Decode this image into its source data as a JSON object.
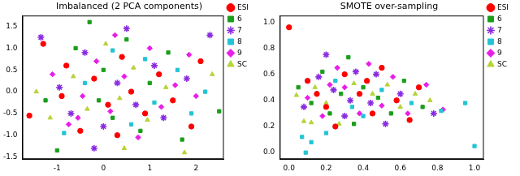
{
  "chart_data": [
    {
      "type": "scatter",
      "title": "Imbalanced (2 PCA components)",
      "xlim": [
        -1.75,
        2.6
      ],
      "xticks": [
        -1,
        0,
        1,
        2
      ],
      "ylim": [
        -1.55,
        1.75
      ],
      "yticks": [
        -1.5,
        {
          "value": -1,
          "label": "-1.0"
        },
        -0.5,
        {
          "value": 0,
          "label": "0.0"
        },
        0.5,
        {
          "value": 1,
          "label": "1.0"
        },
        1.5
      ],
      "grid": false,
      "legend": "upper right",
      "series": [
        {
          "name": "ESI",
          "color": "#ff0000",
          "marker": "circle",
          "values": [
            [
              -1.6,
              -0.55
            ],
            [
              -1.3,
              1.1
            ],
            [
              -0.8,
              0.6
            ],
            [
              -0.5,
              -0.9
            ],
            [
              -0.2,
              0.3
            ],
            [
              0.1,
              -0.3
            ],
            [
              0.4,
              0.8
            ],
            [
              0.6,
              0.0
            ],
            [
              0.9,
              -0.5
            ],
            [
              1.2,
              0.4
            ],
            [
              1.5,
              -0.2
            ],
            [
              2.1,
              0.7
            ],
            [
              1.9,
              -0.8
            ],
            [
              -0.9,
              -0.1
            ],
            [
              0.3,
              -1.0
            ]
          ]
        },
        {
          "name": "6",
          "color": "#1a9e1a",
          "marker": "square",
          "values": [
            [
              -1.25,
              -0.2
            ],
            [
              -1.0,
              -1.35
            ],
            [
              -0.6,
              1.0
            ],
            [
              -0.3,
              1.6
            ],
            [
              0.0,
              0.5
            ],
            [
              0.2,
              -0.6
            ],
            [
              0.5,
              1.2
            ],
            [
              0.8,
              -0.9
            ],
            [
              1.0,
              0.2
            ],
            [
              1.4,
              0.9
            ],
            [
              1.7,
              -1.1
            ],
            [
              2.5,
              -0.45
            ],
            [
              -0.1,
              -0.2
            ]
          ]
        },
        {
          "name": "7",
          "color": "#8a2be2",
          "marker": "star",
          "values": [
            [
              -1.35,
              1.25
            ],
            [
              -0.95,
              0.1
            ],
            [
              -0.7,
              -0.5
            ],
            [
              -0.4,
              0.9
            ],
            [
              0.0,
              -0.8
            ],
            [
              0.3,
              0.2
            ],
            [
              0.5,
              1.45
            ],
            [
              0.7,
              -0.3
            ],
            [
              1.1,
              0.6
            ],
            [
              1.3,
              -0.6
            ],
            [
              1.8,
              0.3
            ],
            [
              2.3,
              1.3
            ],
            [
              -0.2,
              -1.3
            ]
          ]
        },
        {
          "name": "8",
          "color": "#22c4d4",
          "marker": "square",
          "values": [
            [
              -0.85,
              -0.95
            ],
            [
              -0.4,
              0.2
            ],
            [
              0.2,
              0.95
            ],
            [
              0.6,
              -0.75
            ],
            [
              1.1,
              -0.25
            ],
            [
              1.6,
              0.5
            ],
            [
              2.2,
              0.0
            ],
            [
              1.9,
              -0.5
            ],
            [
              0.9,
              0.75
            ]
          ]
        },
        {
          "name": "9",
          "color": "#e81ee8",
          "marker": "diamond",
          "values": [
            [
              -1.1,
              0.4
            ],
            [
              -0.75,
              -0.75
            ],
            [
              -0.45,
              -0.1
            ],
            [
              -0.15,
              0.7
            ],
            [
              0.15,
              -0.45
            ],
            [
              0.45,
              0.35
            ],
            [
              0.75,
              -1.05
            ],
            [
              1.0,
              1.0
            ],
            [
              1.25,
              -0.35
            ],
            [
              1.55,
              0.15
            ],
            [
              1.85,
              0.85
            ],
            [
              2.0,
              -0.1
            ],
            [
              0.25,
              1.3
            ],
            [
              -0.55,
              -0.6
            ]
          ]
        },
        {
          "name": "SC",
          "color": "#b5d43a",
          "marker": "triangle",
          "values": [
            [
              -1.45,
              0.0
            ],
            [
              -1.15,
              -0.6
            ],
            [
              -0.65,
              0.35
            ],
            [
              -0.35,
              -0.4
            ],
            [
              0.05,
              1.1
            ],
            [
              0.35,
              -0.15
            ],
            [
              0.65,
              0.55
            ],
            [
              0.95,
              -0.65
            ],
            [
              1.35,
              0.1
            ],
            [
              1.75,
              -1.4
            ],
            [
              2.35,
              0.4
            ],
            [
              0.45,
              -1.3
            ]
          ]
        }
      ]
    },
    {
      "type": "scatter",
      "title": "SMOTE over-sampling",
      "xlim": [
        -0.05,
        1.05
      ],
      "xticks": [
        {
          "value": 0,
          "label": "0.0"
        },
        0.2,
        0.4,
        0.6,
        0.8,
        {
          "value": 1,
          "label": "1.0"
        }
      ],
      "ylim": [
        -0.05,
        1.05
      ],
      "yticks": [
        {
          "value": 0,
          "label": "0.0"
        },
        0.2,
        0.4,
        0.6,
        0.8,
        {
          "value": 1,
          "label": "1.0"
        }
      ],
      "grid": false,
      "legend": "upper right",
      "series": [
        {
          "name": "ESI",
          "color": "#ff0000",
          "marker": "circle",
          "values": [
            [
              0.0,
              0.96
            ],
            [
              0.1,
              0.55
            ],
            [
              0.2,
              0.35
            ],
            [
              0.3,
              0.6
            ],
            [
              0.38,
              0.45
            ],
            [
              0.45,
              0.3
            ],
            [
              0.5,
              0.65
            ],
            [
              0.58,
              0.4
            ],
            [
              0.65,
              0.25
            ],
            [
              0.25,
              0.2
            ],
            [
              0.15,
              0.45
            ],
            [
              0.42,
              0.55
            ],
            [
              0.7,
              0.5
            ]
          ]
        },
        {
          "name": "6",
          "color": "#1a9e1a",
          "marker": "square",
          "values": [
            [
              0.05,
              0.5
            ],
            [
              0.18,
              0.62
            ],
            [
              0.22,
              0.3
            ],
            [
              0.32,
              0.73
            ],
            [
              0.35,
              0.22
            ],
            [
              0.4,
              0.5
            ],
            [
              0.48,
              0.42
            ],
            [
              0.55,
              0.3
            ],
            [
              0.62,
              0.55
            ],
            [
              0.72,
              0.35
            ],
            [
              0.28,
              0.45
            ],
            [
              0.12,
              0.38
            ]
          ]
        },
        {
          "name": "7",
          "color": "#8a2be2",
          "marker": "star",
          "values": [
            [
              0.08,
              0.35
            ],
            [
              0.16,
              0.58
            ],
            [
              0.24,
              0.48
            ],
            [
              0.3,
              0.28
            ],
            [
              0.36,
              0.62
            ],
            [
              0.44,
              0.38
            ],
            [
              0.52,
              0.22
            ],
            [
              0.6,
              0.45
            ],
            [
              0.78,
              0.3
            ],
            [
              0.2,
              0.75
            ],
            [
              0.33,
              0.4
            ],
            [
              0.47,
              0.6
            ]
          ]
        },
        {
          "name": "8",
          "color": "#22c4d4",
          "marker": "square",
          "values": [
            [
              0.07,
              0.12
            ],
            [
              0.12,
              0.08
            ],
            [
              0.2,
              0.15
            ],
            [
              0.25,
              0.55
            ],
            [
              0.34,
              0.35
            ],
            [
              0.5,
              0.48
            ],
            [
              0.66,
              0.38
            ],
            [
              0.82,
              0.32
            ],
            [
              0.95,
              0.38
            ],
            [
              1.0,
              0.05
            ],
            [
              0.09,
              0.0
            ],
            [
              0.4,
              0.28
            ]
          ]
        },
        {
          "name": "9",
          "color": "#e81ee8",
          "marker": "diamond",
          "values": [
            [
              0.1,
              0.42
            ],
            [
              0.18,
              0.28
            ],
            [
              0.26,
              0.65
            ],
            [
              0.3,
              0.5
            ],
            [
              0.38,
              0.3
            ],
            [
              0.43,
              0.68
            ],
            [
              0.5,
              0.36
            ],
            [
              0.56,
              0.58
            ],
            [
              0.64,
              0.3
            ],
            [
              0.74,
              0.52
            ],
            [
              0.83,
              0.33
            ],
            [
              0.22,
              0.52
            ]
          ]
        },
        {
          "name": "SC",
          "color": "#b5d43a",
          "marker": "triangle",
          "values": [
            [
              0.04,
              0.44
            ],
            [
              0.08,
              0.24
            ],
            [
              0.14,
              0.5
            ],
            [
              0.2,
              0.38
            ],
            [
              0.27,
              0.22
            ],
            [
              0.35,
              0.53
            ],
            [
              0.45,
              0.45
            ],
            [
              0.53,
              0.52
            ],
            [
              0.6,
              0.35
            ],
            [
              0.68,
              0.45
            ],
            [
              0.76,
              0.4
            ],
            [
              0.12,
              0.23
            ]
          ]
        }
      ]
    }
  ]
}
